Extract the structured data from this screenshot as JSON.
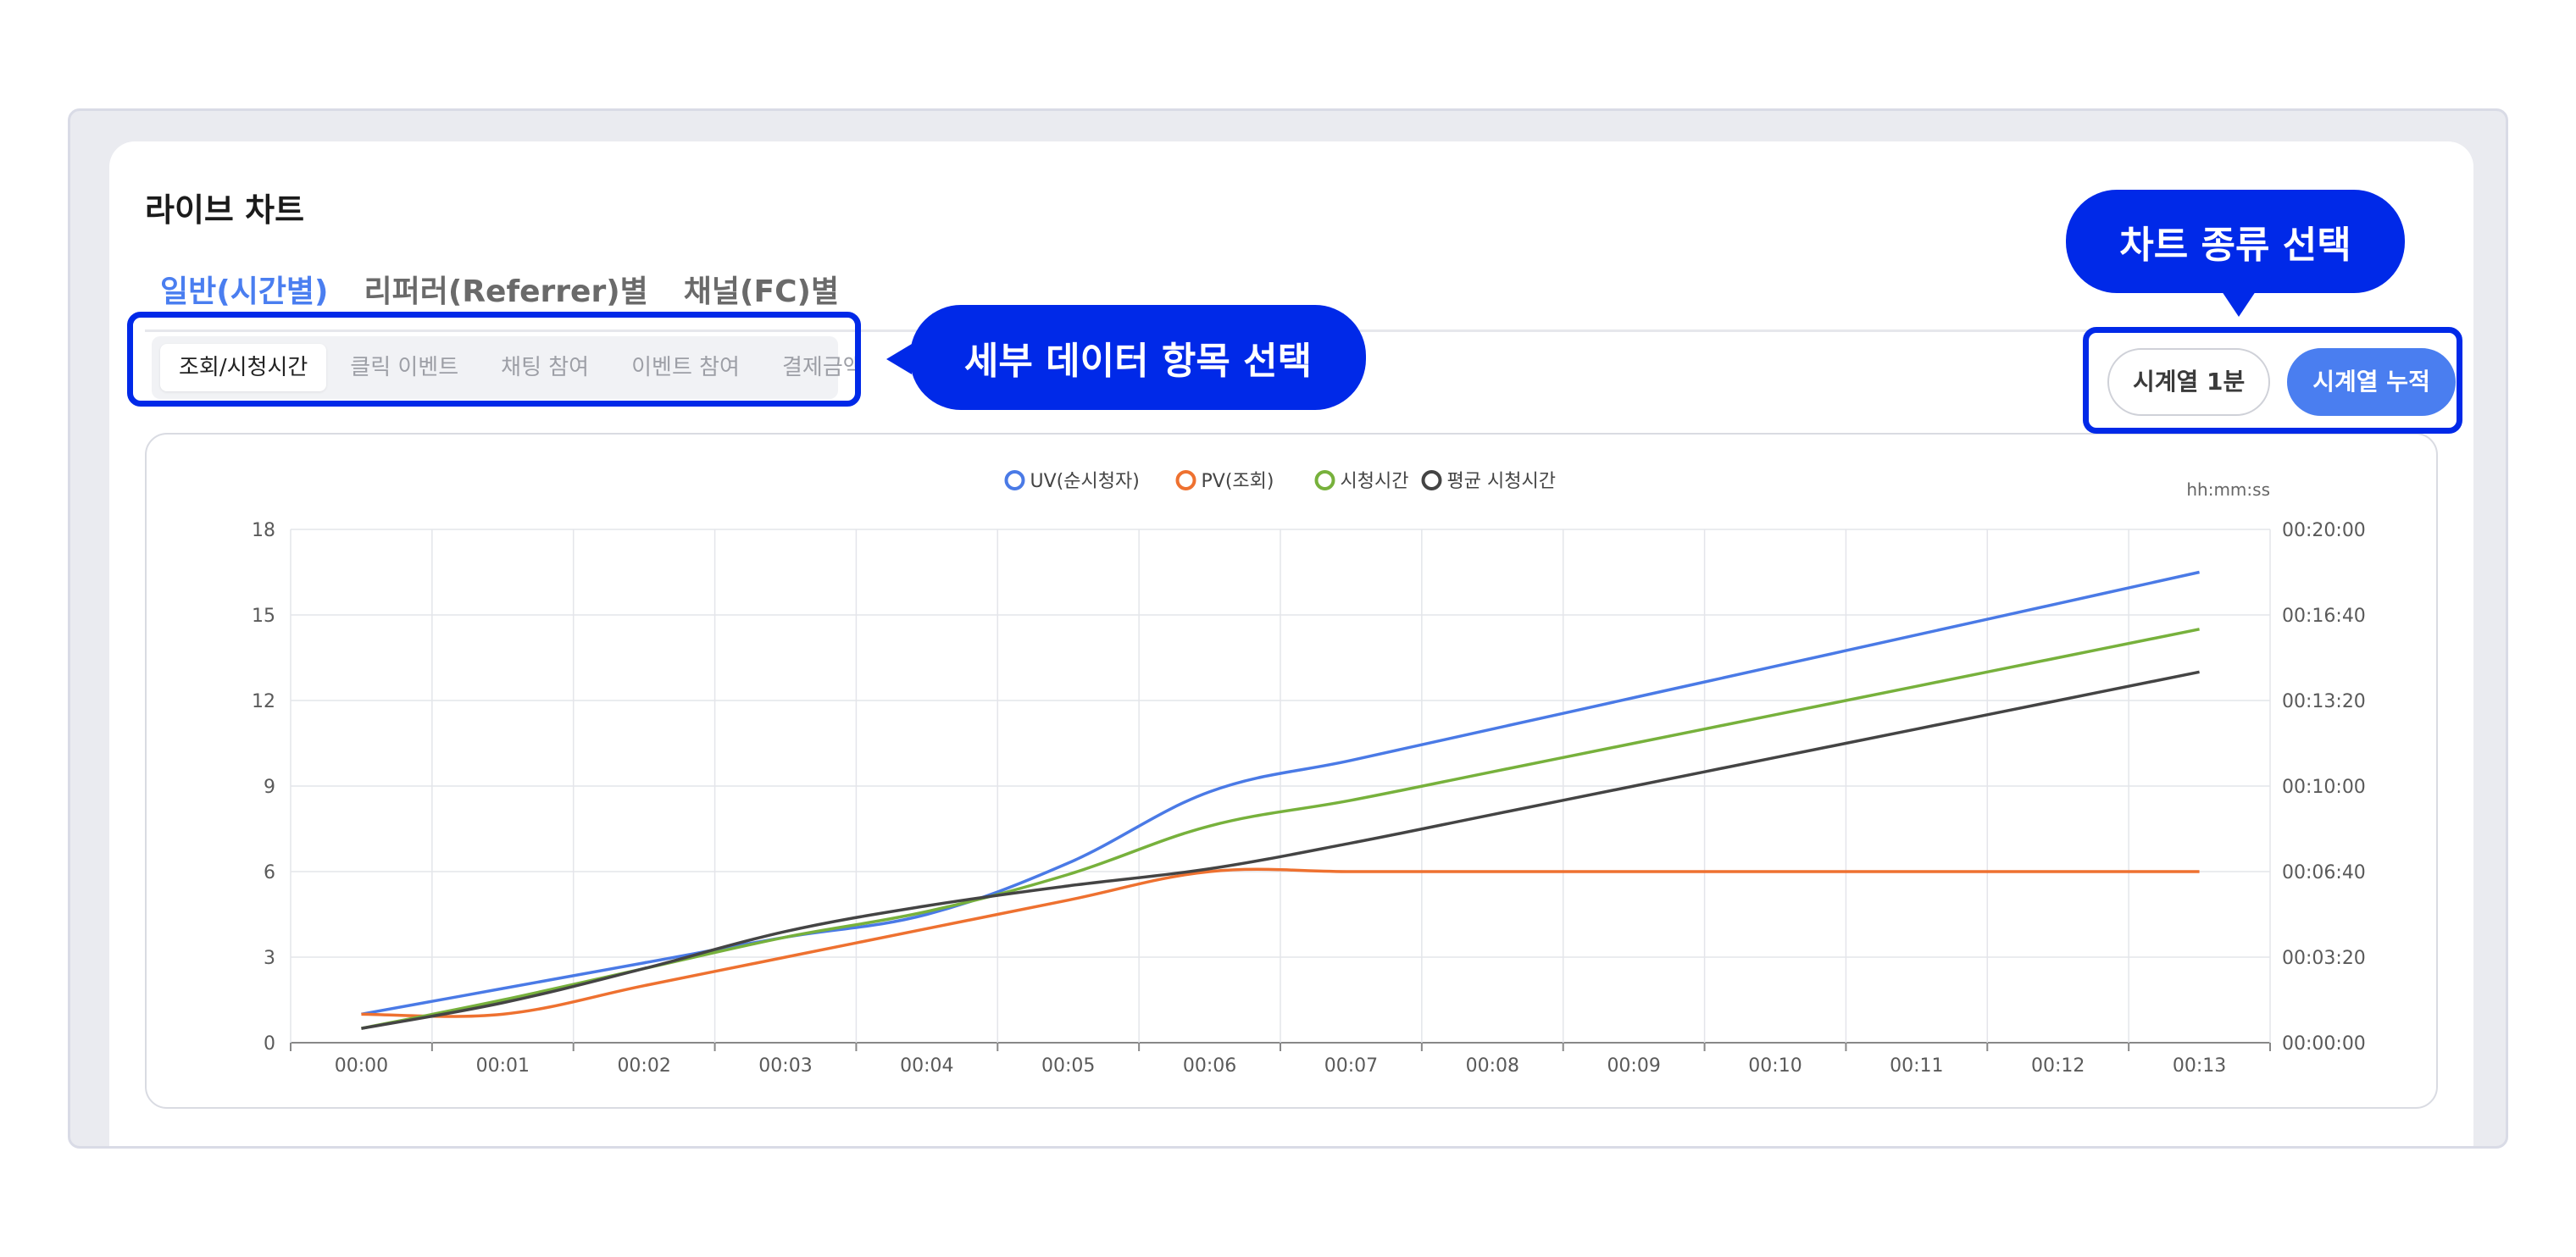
{
  "page": {
    "title": "라이브 차트"
  },
  "main_tabs": [
    {
      "label": "일반(시간별)",
      "active": true
    },
    {
      "label": "리퍼러(Referrer)별",
      "active": false
    },
    {
      "label": "채널(FC)별",
      "active": false
    }
  ],
  "sub_tabs": [
    {
      "label": "조회/시청시간",
      "active": true
    },
    {
      "label": "클릭 이벤트",
      "active": false
    },
    {
      "label": "채팅 참여",
      "active": false
    },
    {
      "label": "이벤트 참여",
      "active": false
    },
    {
      "label": "결제금액",
      "active": false
    }
  ],
  "chart_type_buttons": [
    {
      "label": "시계열 1분",
      "active": false
    },
    {
      "label": "시계열 누적",
      "active": true
    }
  ],
  "annotations": {
    "sub_tabs_callout": "세부 데이터 항목 선택",
    "chart_type_callout": "차트 종류 선택"
  },
  "colors": {
    "accent": "#4a7ef0",
    "annotation": "#0029e8"
  },
  "chart_data": {
    "type": "line",
    "x": [
      "00:00",
      "00:01",
      "00:02",
      "00:03",
      "00:04",
      "00:05",
      "00:06",
      "00:07",
      "00:08",
      "00:09",
      "00:10",
      "00:11",
      "00:12",
      "00:13"
    ],
    "y_left": {
      "ticks": [
        "0",
        "3",
        "6",
        "9",
        "12",
        "15",
        "18"
      ],
      "lim": [
        0,
        18
      ]
    },
    "y_right": {
      "unit": "hh:mm:ss",
      "ticks": [
        "00:00:00",
        "00:03:20",
        "00:06:40",
        "00:10:00",
        "00:13:20",
        "00:16:40",
        "00:20:00"
      ],
      "lim": [
        "00:00:00",
        "00:20:00"
      ]
    },
    "series": [
      {
        "name": "UV(순시청자)",
        "color": "#4a7ae6",
        "axis": "left",
        "values": [
          1,
          1.9,
          2.8,
          3.7,
          4.5,
          6.3,
          8.8,
          9.9,
          11.0,
          12.1,
          13.2,
          14.3,
          15.4,
          16.5
        ]
      },
      {
        "name": "PV(조회)",
        "color": "#ee7130",
        "axis": "left",
        "values": [
          1,
          1,
          2,
          3,
          4,
          5,
          6,
          6,
          6,
          6,
          6,
          6,
          6,
          6
        ]
      },
      {
        "name": "시청시간",
        "color": "#77b13c",
        "axis": "left",
        "values": [
          0.5,
          1.5,
          2.6,
          3.7,
          4.6,
          5.9,
          7.6,
          8.5,
          9.5,
          10.5,
          11.5,
          12.5,
          13.5,
          14.5
        ]
      },
      {
        "name": "평균 시청시간",
        "color": "#444444",
        "axis": "left",
        "values": [
          0.5,
          1.4,
          2.6,
          3.9,
          4.8,
          5.5,
          6.1,
          7.0,
          8.0,
          9.0,
          10.0,
          11.0,
          12.0,
          13.0
        ]
      }
    ],
    "legend_position": "top-center",
    "grid": true
  }
}
